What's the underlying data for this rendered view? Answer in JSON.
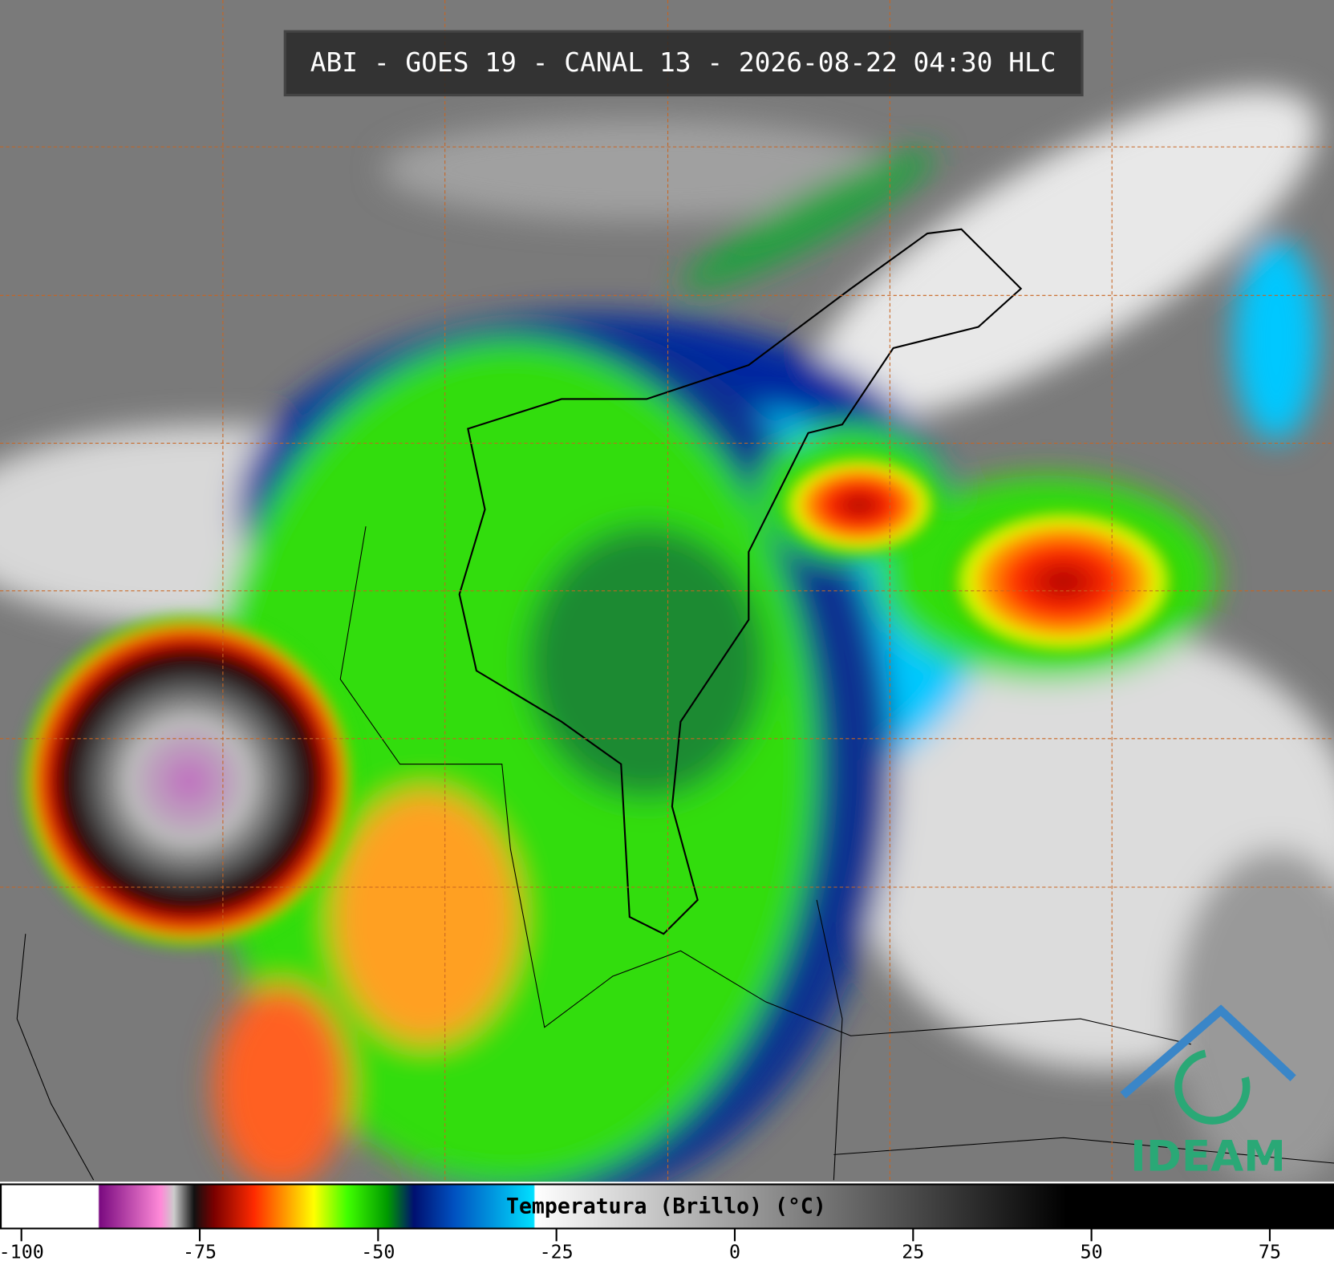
{
  "header": {
    "title": "ABI - GOES 19 - CANAL 13 - 2026-08-22 04:30 HLC"
  },
  "colorbar": {
    "label": "Temperatura (Brillo) (°C)",
    "lim": [
      -103,
      84
    ],
    "ticks": [
      -100,
      -75,
      -50,
      -25,
      0,
      25,
      50,
      75
    ]
  },
  "logo": {
    "text": "IDEAM"
  }
}
